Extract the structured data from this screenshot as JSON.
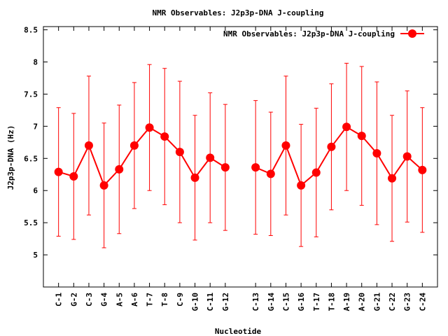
{
  "chart_data": {
    "type": "line",
    "title": "NMR Observables: J2p3p-DNA J-coupling",
    "xlabel": "Nucleotide",
    "ylabel": "J2p3p-DNA (Hz)",
    "ylim": [
      4.5,
      8.55
    ],
    "yticks": [
      "5",
      "5.5",
      "6",
      "6.5",
      "7",
      "7.5",
      "8",
      "8.5"
    ],
    "xlim": [
      0,
      26
    ],
    "legend_position": "top-right",
    "color": "#ff0000",
    "categories": [
      "C-1",
      "G-2",
      "C-3",
      "G-4",
      "A-5",
      "A-6",
      "T-7",
      "T-8",
      "C-9",
      "G-10",
      "C-11",
      "G-12",
      "C-13",
      "G-14",
      "C-15",
      "G-16",
      "T-17",
      "T-18",
      "A-19",
      "A-20",
      "G-21",
      "C-22",
      "G-23",
      "C-24"
    ],
    "x": [
      1,
      2,
      3,
      4,
      5,
      6,
      7,
      8,
      9,
      10,
      11,
      12,
      14,
      15,
      16,
      17,
      18,
      19,
      20,
      21,
      22,
      23,
      24,
      25
    ],
    "series": [
      {
        "name": "NMR Observables: J2p3p-DNA J-coupling",
        "segments": [
          [
            0,
            11
          ],
          [
            12,
            23
          ]
        ],
        "values": [
          6.29,
          6.22,
          6.7,
          6.08,
          6.33,
          6.7,
          6.98,
          6.84,
          6.6,
          6.2,
          6.51,
          6.36,
          6.36,
          6.26,
          6.7,
          6.08,
          6.28,
          6.68,
          6.99,
          6.85,
          6.58,
          6.19,
          6.53,
          6.32
        ],
        "errors": [
          1.0,
          0.98,
          1.08,
          0.97,
          1.0,
          0.98,
          0.98,
          1.06,
          1.1,
          0.97,
          1.01,
          0.98,
          1.04,
          0.96,
          1.08,
          0.95,
          1.0,
          0.98,
          0.99,
          1.08,
          1.11,
          0.98,
          1.02,
          0.97
        ]
      }
    ]
  }
}
